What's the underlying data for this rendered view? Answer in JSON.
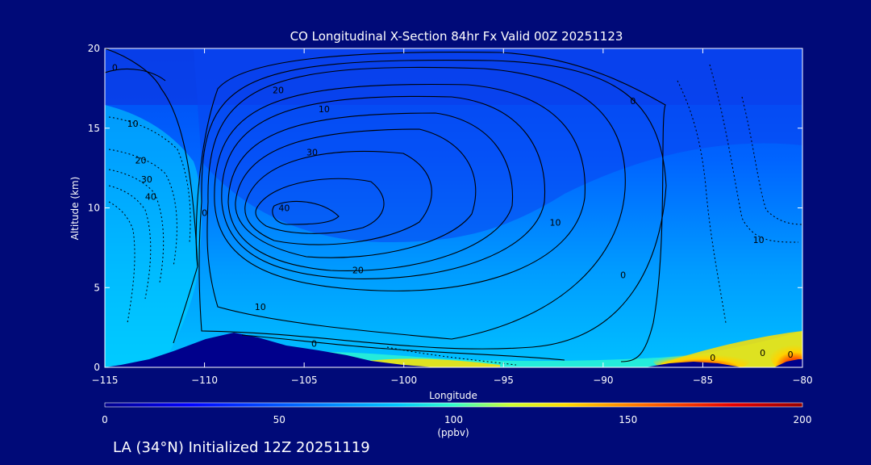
{
  "chart_data": {
    "type": "contour",
    "title": "CO Longitudinal X-Section 84hr  Fx Valid 00Z 20251123",
    "xlabel": "Longitude",
    "ylabel": "Altitude (km)",
    "xlim": [
      -115,
      -80
    ],
    "ylim": [
      0,
      20
    ],
    "x_ticks": [
      -115,
      -110,
      -105,
      -100,
      -95,
      -90,
      -85,
      -80
    ],
    "x_tick_labels": [
      "−115",
      "−110",
      "−105",
      "−100",
      "−95",
      "−90",
      "−85",
      "−80"
    ],
    "y_ticks": [
      0,
      5,
      10,
      15,
      20
    ],
    "y_tick_labels": [
      "0",
      "5",
      "10",
      "15",
      "20"
    ],
    "colorbar": {
      "min": 0,
      "max": 200,
      "ticks": [
        0,
        50,
        100,
        150,
        200
      ],
      "tick_labels": [
        "0",
        "50",
        "100",
        "150",
        "200"
      ],
      "units": "(ppbv)",
      "colors": [
        "#00008c",
        "#0000ff",
        "#0064ff",
        "#00c8ff",
        "#33ffcc",
        "#ccff33",
        "#ffdd00",
        "#ff6600",
        "#e60000",
        "#960000"
      ]
    },
    "contour_labels": [
      {
        "text": "0",
        "x": -114.5,
        "y": 18.8
      },
      {
        "text": "0",
        "x": -110.0,
        "y": 9.7
      },
      {
        "text": "0",
        "x": -104.5,
        "y": 1.5
      },
      {
        "text": "0",
        "x": -84.5,
        "y": 0.6
      },
      {
        "text": "0",
        "x": -89.0,
        "y": 5.8
      },
      {
        "text": "0",
        "x": -88.5,
        "y": 16.7
      },
      {
        "text": "0",
        "x": -82.0,
        "y": 0.9
      },
      {
        "text": "0",
        "x": -80.6,
        "y": 0.8
      },
      {
        "text": "10",
        "x": -113.6,
        "y": 15.3
      },
      {
        "text": "20",
        "x": -113.2,
        "y": 13.0
      },
      {
        "text": "30",
        "x": -112.9,
        "y": 11.8
      },
      {
        "text": "40",
        "x": -112.7,
        "y": 10.7
      },
      {
        "text": "10",
        "x": -107.2,
        "y": 3.8
      },
      {
        "text": "20",
        "x": -102.3,
        "y": 6.1
      },
      {
        "text": "30",
        "x": -104.6,
        "y": 13.5
      },
      {
        "text": "40",
        "x": -106.0,
        "y": 10.0
      },
      {
        "text": "20",
        "x": -106.3,
        "y": 17.4
      },
      {
        "text": "10",
        "x": -104.0,
        "y": 16.2
      },
      {
        "text": "10",
        "x": -92.4,
        "y": 9.1
      },
      {
        "text": "10",
        "x": -82.2,
        "y": 8.0
      }
    ]
  },
  "caption": "LA (34°N) Initialized 12Z 20251119"
}
